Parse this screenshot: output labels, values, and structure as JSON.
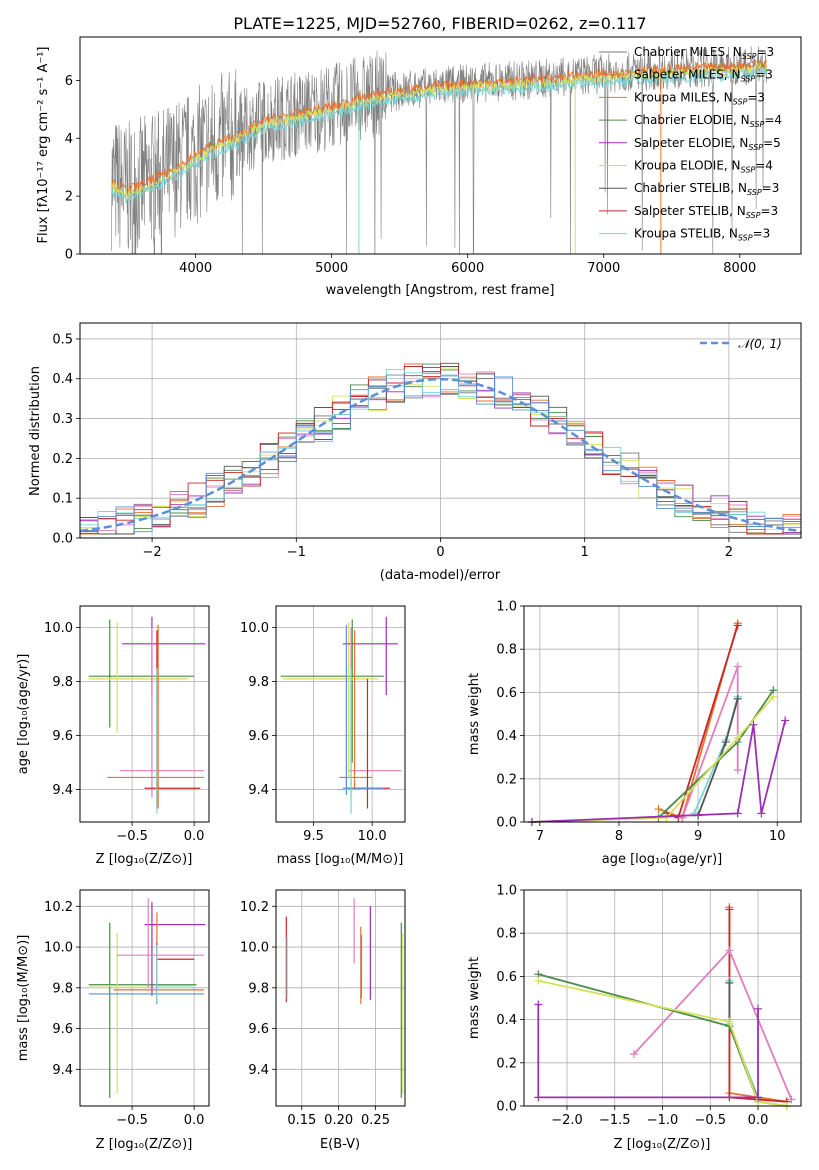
{
  "colors": [
    "#777777",
    "#e8732a",
    "#e8732a",
    "#4a8c4a",
    "#9b30b0",
    "#d6e15a",
    "#555555",
    "#c9272d",
    "#79d6d6"
  ],
  "chart_data": [
    {
      "id": "spectrum",
      "type": "line",
      "title": "PLATE=1225, MJD=52760, FIBERID=0262, z=0.117",
      "xlabel": "wavelength [Angstrom, rest frame]",
      "ylabel": "Flux [fλ10⁻¹⁷ erg cm⁻² s⁻¹ A⁻¹]",
      "xlim": [
        3150,
        8450
      ],
      "ylim": [
        0,
        7.5
      ],
      "xticks": [
        "4000",
        "5000",
        "6000",
        "7000",
        "8000"
      ],
      "yticks": [
        "0",
        "2",
        "4",
        "6"
      ],
      "continuum": {
        "x": [
          3380,
          3500,
          3700,
          3900,
          4100,
          4300,
          4500,
          4800,
          5000,
          5300,
          5600,
          6000,
          6400,
          6800,
          7200,
          7600,
          8000,
          8200
        ],
        "y": [
          2.5,
          2.2,
          2.6,
          3.1,
          3.7,
          4.1,
          4.6,
          4.9,
          5.1,
          5.5,
          5.7,
          5.9,
          6.0,
          6.15,
          6.3,
          6.4,
          6.5,
          6.6
        ]
      },
      "legend": [
        {
          "text": "Chabrier MILES, N",
          "sub": "SSP",
          "eq": "=3",
          "color": "#777777"
        },
        {
          "text": "Salpeter MILES, N",
          "sub": "SSP",
          "eq": "=3",
          "color": "#e8732a"
        },
        {
          "text": "Kroupa MILES, N",
          "sub": "SSP",
          "eq": "=3",
          "color": "#e8732a"
        },
        {
          "text": "Chabrier ELODIE, N",
          "sub": "SSP",
          "eq": "=4",
          "color": "#4a8c4a"
        },
        {
          "text": "Salpeter ELODIE, N",
          "sub": "SSP",
          "eq": "=5",
          "color": "#9b30b0"
        },
        {
          "text": "Kroupa ELODIE, N",
          "sub": "SSP",
          "eq": "=4",
          "color": "#d6e15a"
        },
        {
          "text": "Chabrier STELIB, N",
          "sub": "SSP",
          "eq": "=3",
          "color": "#555555"
        },
        {
          "text": "Salpeter STELIB, N",
          "sub": "SSP",
          "eq": "=3",
          "color": "#c9272d"
        },
        {
          "text": "Kroupa STELIB, N",
          "sub": "SSP",
          "eq": "=3",
          "color": "#79d6d6"
        }
      ]
    },
    {
      "id": "residuals",
      "type": "line",
      "xlabel": "(data-model)/error",
      "ylabel": "Normed distribution",
      "xlim": [
        -2.5,
        2.5
      ],
      "ylim": [
        0,
        0.54
      ],
      "xticks": [
        "−2",
        "−1",
        "0",
        "1",
        "2"
      ],
      "yticks": [
        "0.0",
        "0.1",
        "0.2",
        "0.3",
        "0.4",
        "0.5"
      ],
      "legend": "𝒩(0, 1)",
      "legend_color": "#5b8fd6",
      "legend_placement": "top-right",
      "grid": true
    },
    {
      "id": "age-vs-Z",
      "type": "scatter",
      "xlabel": "Z [log₁₀(Z/Z⊙)]",
      "ylabel": "age  [log₁₀(age/yr)]",
      "xlim": [
        -0.92,
        0.12
      ],
      "ylim": [
        9.28,
        10.08
      ],
      "xticks": [
        "−0.5",
        "0.0"
      ],
      "yticks": [
        "9.4",
        "9.6",
        "9.8",
        "10.0"
      ],
      "grid": true
    },
    {
      "id": "age-vs-mass",
      "type": "scatter",
      "xlabel": "mass [log₁₀(M/M⊙)]",
      "xlim": [
        9.18,
        10.28
      ],
      "ylim": [
        9.28,
        10.08
      ],
      "xticks": [
        "9.5",
        "10.0"
      ],
      "yticks": [
        "9.4",
        "9.6",
        "9.8",
        "10.0"
      ],
      "grid": true
    },
    {
      "id": "weight-vs-age",
      "type": "line",
      "xlabel": "age  [log₁₀(age/yr)]",
      "ylabel": "mass weight",
      "xlim": [
        6.8,
        10.3
      ],
      "ylim": [
        0,
        1.0
      ],
      "xticks": [
        "7",
        "8",
        "9",
        "10"
      ],
      "yticks": [
        "0.0",
        "0.2",
        "0.4",
        "0.6",
        "0.8",
        "1.0"
      ],
      "grid": true,
      "series": [
        {
          "color": "#e8732a",
          "x": [
            8.5,
            8.8,
            9.5
          ],
          "y": [
            0.06,
            0.02,
            0.92
          ]
        },
        {
          "color": "#c9272d",
          "x": [
            8.6,
            8.75,
            9.5
          ],
          "y": [
            0.04,
            0.02,
            0.91
          ]
        },
        {
          "color": "#e07fbf",
          "x": [
            8.8,
            9.5,
            9.5
          ],
          "y": [
            0.02,
            0.72,
            0.24
          ]
        },
        {
          "color": "#79d6d6",
          "x": [
            8.95,
            9.35,
            9.5
          ],
          "y": [
            0.04,
            0.38,
            0.58
          ]
        },
        {
          "color": "#555555",
          "x": [
            9.0,
            9.35,
            9.5
          ],
          "y": [
            0.03,
            0.37,
            0.57
          ]
        },
        {
          "color": "#4a8c4a",
          "x": [
            6.9,
            8.5,
            9.5,
            9.95
          ],
          "y": [
            0.0,
            0.02,
            0.37,
            0.61
          ]
        },
        {
          "color": "#d6e15a",
          "x": [
            6.9,
            8.6,
            9.5,
            9.95
          ],
          "y": [
            0.0,
            0.02,
            0.39,
            0.58
          ]
        },
        {
          "color": "#9b30b0",
          "x": [
            6.9,
            9.5,
            9.7,
            9.8,
            10.1
          ],
          "y": [
            0.0,
            0.04,
            0.45,
            0.04,
            0.47
          ]
        }
      ]
    },
    {
      "id": "mass-vs-Z",
      "type": "scatter",
      "xlabel": "Z [log₁₀(Z/Z⊙)]",
      "ylabel": "mass [log₁₀(M/M⊙)]",
      "xlim": [
        -0.92,
        0.12
      ],
      "ylim": [
        9.22,
        10.28
      ],
      "xticks": [
        "−0.5",
        "0.0"
      ],
      "yticks": [
        "9.4",
        "9.6",
        "9.8",
        "10.0",
        "10.2"
      ],
      "grid": true
    },
    {
      "id": "mass-vs-EBV",
      "type": "scatter",
      "xlabel": "E(B-V)",
      "xlim": [
        0.115,
        0.29
      ],
      "ylim": [
        9.22,
        10.28
      ],
      "xticks": [
        "0.15",
        "0.20",
        "0.25"
      ],
      "yticks": [
        "9.4",
        "9.6",
        "9.8",
        "10.0",
        "10.2"
      ],
      "grid": true
    },
    {
      "id": "weight-vs-Z",
      "type": "line",
      "xlabel": "Z [log₁₀(Z/Z⊙)]",
      "ylabel": "mass weight",
      "xlim": [
        -2.45,
        0.45
      ],
      "ylim": [
        0,
        1.0
      ],
      "xticks": [
        "−2.0",
        "−1.5",
        "−1.0",
        "−0.5",
        "0.0"
      ],
      "yticks": [
        "0.0",
        "0.2",
        "0.4",
        "0.6",
        "0.8",
        "1.0"
      ],
      "grid": true,
      "series": [
        {
          "color": "#e8732a",
          "x": [
            -0.3,
            -0.3,
            0.3
          ],
          "y": [
            0.92,
            0.06,
            0.02
          ]
        },
        {
          "color": "#c9272d",
          "x": [
            -0.3,
            -0.3,
            0.3
          ],
          "y": [
            0.91,
            0.04,
            0.02
          ]
        },
        {
          "color": "#e07fbf",
          "x": [
            -1.3,
            -0.3,
            0.35
          ],
          "y": [
            0.24,
            0.72,
            0.03
          ]
        },
        {
          "color": "#79d6d6",
          "x": [
            -0.3,
            -0.3,
            0.0
          ],
          "y": [
            0.58,
            0.38,
            0.04
          ]
        },
        {
          "color": "#555555",
          "x": [
            -0.3,
            -0.3,
            0.0
          ],
          "y": [
            0.57,
            0.37,
            0.03
          ]
        },
        {
          "color": "#4a8c4a",
          "x": [
            -2.3,
            -0.3,
            0.0,
            0.3
          ],
          "y": [
            0.61,
            0.37,
            0.02,
            0.0
          ]
        },
        {
          "color": "#d6e15a",
          "x": [
            -2.3,
            -0.3,
            0.0,
            0.3
          ],
          "y": [
            0.58,
            0.39,
            0.02,
            0.0
          ]
        },
        {
          "color": "#9b30b0",
          "x": [
            -2.3,
            -2.3,
            0.0,
            0.0
          ],
          "y": [
            0.47,
            0.04,
            0.04,
            0.45
          ]
        }
      ]
    }
  ]
}
